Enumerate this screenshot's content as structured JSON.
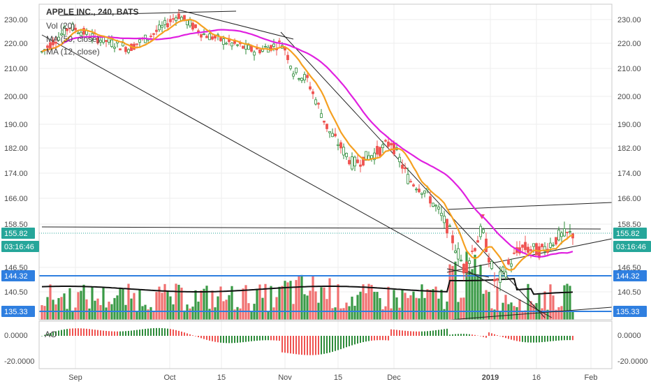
{
  "legend": {
    "title": "APPLE INC., 240, BATS",
    "lines": [
      "Vol (20)",
      "MA (50, close)",
      "MA (12, close)"
    ],
    "osc_label": "AO"
  },
  "price_axis_ticks": [
    "230.00",
    "220.00",
    "210.00",
    "200.00",
    "190.00",
    "182.00",
    "174.00",
    "166.00",
    "158.50",
    "146.50",
    "140.50"
  ],
  "price_axis_values": [
    230,
    220,
    210,
    200,
    190,
    182,
    174,
    166,
    158.5,
    146.5,
    140.5
  ],
  "osc_axis_ticks": [
    "0.0000",
    "-20.0000"
  ],
  "time_ticks": [
    {
      "label": "Sep",
      "bold": false
    },
    {
      "label": "Oct",
      "bold": false
    },
    {
      "label": "15",
      "bold": false
    },
    {
      "label": "Nov",
      "bold": false
    },
    {
      "label": "15",
      "bold": false
    },
    {
      "label": "Dec",
      "bold": false
    },
    {
      "label": "2019",
      "bold": true
    },
    {
      "label": "16",
      "bold": false
    },
    {
      "label": "Feb",
      "bold": false
    }
  ],
  "price_tags": [
    {
      "label": "155.82",
      "color": "#26a69a",
      "side": "both"
    },
    {
      "label": "03:16:46",
      "color": "#26a69a",
      "side": "both"
    },
    {
      "label": "144.32",
      "color": "#2f7fe0",
      "side": "both"
    },
    {
      "label": "135.33",
      "color": "#2f7fe0",
      "side": "both"
    }
  ],
  "colors": {
    "up": "#2e8b3a",
    "down": "#ef5350",
    "vol_up": "#3a9a46",
    "vol_down": "#f07070",
    "ma50": "#e020e0",
    "ma12": "#f5a020",
    "vol_ma": "#111111",
    "hline": "#2f7fe0",
    "trend": "#222222",
    "grid": "#eeeeee",
    "current_price": "#26a69a",
    "marker": "#ef5350"
  },
  "chart_data": {
    "type": "candlestick",
    "symbol": "APPLE INC.",
    "interval": "240",
    "exchange": "BATS",
    "indicators": [
      "Vol (20)",
      "MA (50, close)",
      "MA (12, close)",
      "AO"
    ],
    "y_range": [
      132,
      235
    ],
    "last_price": 155.82,
    "countdown": "03:16:46",
    "horizontal_levels": [
      144.32,
      135.33
    ],
    "keypoints_close": [
      [
        "Aug-23",
        216
      ],
      [
        "Sep-04",
        227
      ],
      [
        "Sep-12",
        222
      ],
      [
        "Sep-20",
        218
      ],
      [
        "Sep-28",
        224
      ],
      [
        "Oct-03",
        232
      ],
      [
        "Oct-10",
        224
      ],
      [
        "Oct-17",
        220
      ],
      [
        "Oct-24",
        217
      ],
      [
        "Oct-31",
        220
      ],
      [
        "Nov-02",
        209
      ],
      [
        "Nov-08",
        206
      ],
      [
        "Nov-14",
        188
      ],
      [
        "Nov-20",
        177
      ],
      [
        "Nov-28",
        180
      ],
      [
        "Dec-03",
        184
      ],
      [
        "Dec-07",
        172
      ],
      [
        "Dec-13",
        168
      ],
      [
        "Dec-19",
        158
      ],
      [
        "Dec-24",
        146
      ],
      [
        "Dec-28",
        157
      ],
      [
        "Jan-03",
        142
      ],
      [
        "Jan-09",
        152
      ],
      [
        "Jan-15",
        151
      ],
      [
        "Jan-22",
        155
      ],
      [
        "Jan-25",
        155.82
      ]
    ]
  }
}
